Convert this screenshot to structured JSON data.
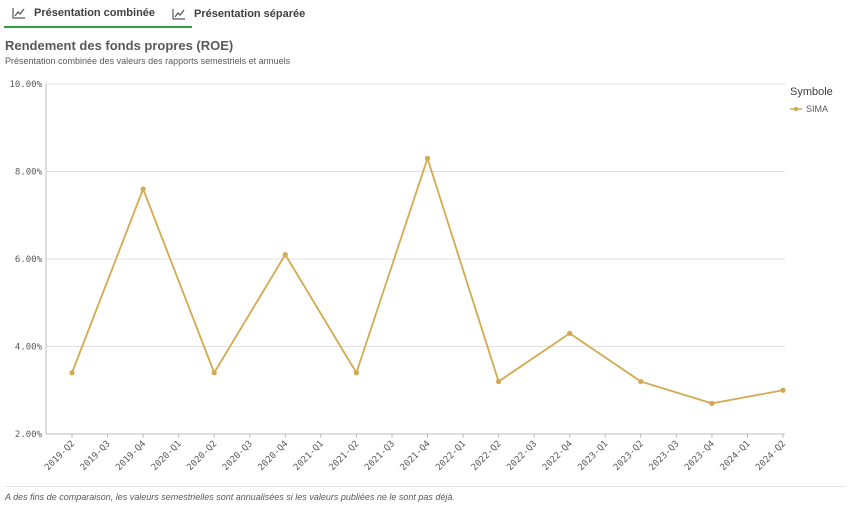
{
  "tabs": [
    {
      "label": "Présentation combinée",
      "icon": "line-chart-icon",
      "active": true
    },
    {
      "label": "Présentation séparée",
      "icon": "line-chart-icon",
      "active": false
    }
  ],
  "title": "Rendement des fonds propres (ROE)",
  "subtitle": "Présentation combinée des valeurs des rapports semestriels et annuels",
  "legend": {
    "title": "Symbole",
    "items": [
      {
        "label": "SIMA",
        "color": "#d4aa50"
      }
    ]
  },
  "footer_note": "A des fins de comparaison, les valeurs semestrielles sont annualisées si les valeurs publiées ne le sont pas déjà.",
  "chart_data": {
    "type": "line",
    "categories": [
      "2019-Q2",
      "2019-Q3",
      "2019-Q4",
      "2020-Q1",
      "2020-Q2",
      "2020-Q3",
      "2020-Q4",
      "2021-Q1",
      "2021-Q2",
      "2021-Q3",
      "2021-Q4",
      "2022-Q1",
      "2022-Q2",
      "2022-Q3",
      "2022-Q4",
      "2023-Q1",
      "2023-Q2",
      "2023-Q3",
      "2023-Q4",
      "2024-Q1",
      "2024-Q2"
    ],
    "series": [
      {
        "name": "SIMA",
        "color": "#d4aa50",
        "values": [
          3.4,
          null,
          7.6,
          null,
          3.4,
          null,
          6.1,
          null,
          3.4,
          null,
          8.3,
          null,
          3.2,
          null,
          4.3,
          null,
          3.2,
          null,
          2.7,
          null,
          3.0
        ]
      }
    ],
    "ylim": [
      2,
      10
    ],
    "yticks": [
      2,
      4,
      6,
      8,
      10
    ],
    "ytick_labels": [
      "2.00%",
      "4.00%",
      "6.00%",
      "8.00%",
      "10.00%"
    ],
    "grid": true,
    "legend_position": "right"
  }
}
